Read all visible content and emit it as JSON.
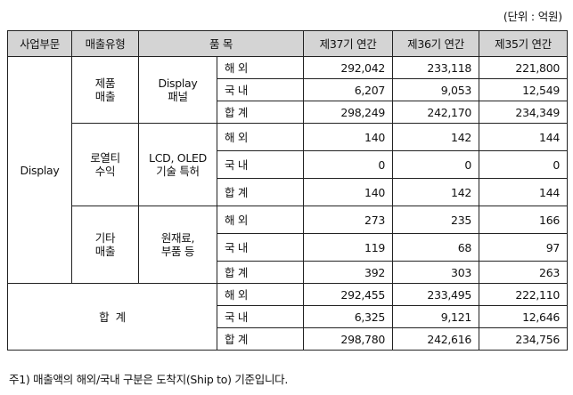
{
  "unit_note": "(단위 : 억원)",
  "headers": {
    "division": "사업부문",
    "sales_type": "매출유형",
    "item": "품 목",
    "fy37": "제37기 연간",
    "fy36": "제36기 연간",
    "fy35": "제35기 연간"
  },
  "division_name": "Display",
  "labels": {
    "overseas": "해 외",
    "domestic": "국 내",
    "subtotal": "합 계"
  },
  "groups": {
    "product": {
      "type_line1": "제품",
      "type_line2": "매출",
      "item_line1": "Display",
      "item_line2": "패널",
      "overseas": [
        "292,042",
        "233,118",
        "221,800"
      ],
      "domestic": [
        "6,207",
        "9,053",
        "12,549"
      ],
      "total": [
        "298,249",
        "242,170",
        "234,349"
      ]
    },
    "royalty": {
      "type_line1": "로열티",
      "type_line2": "수익",
      "item_line1": "LCD, OLED",
      "item_line2": "기술 특허",
      "overseas": [
        "140",
        "142",
        "144"
      ],
      "domestic": [
        "0",
        "0",
        "0"
      ],
      "total": [
        "140",
        "142",
        "144"
      ]
    },
    "other": {
      "type_line1": "기타",
      "type_line2": "매출",
      "item_line1": "원재료,",
      "item_line2": "부품 등",
      "overseas": [
        "273",
        "235",
        "166"
      ],
      "domestic": [
        "119",
        "68",
        "97"
      ],
      "total": [
        "392",
        "303",
        "263"
      ]
    }
  },
  "grand_total": {
    "label": "합  계",
    "overseas": [
      "292,455",
      "233,495",
      "222,110"
    ],
    "domestic": [
      "6,325",
      "9,121",
      "12,646"
    ],
    "total": [
      "298,780",
      "242,616",
      "234,756"
    ]
  },
  "footnote": "주1) 매출액의 해외/국내 구분은 도착지(Ship to) 기준입니다."
}
